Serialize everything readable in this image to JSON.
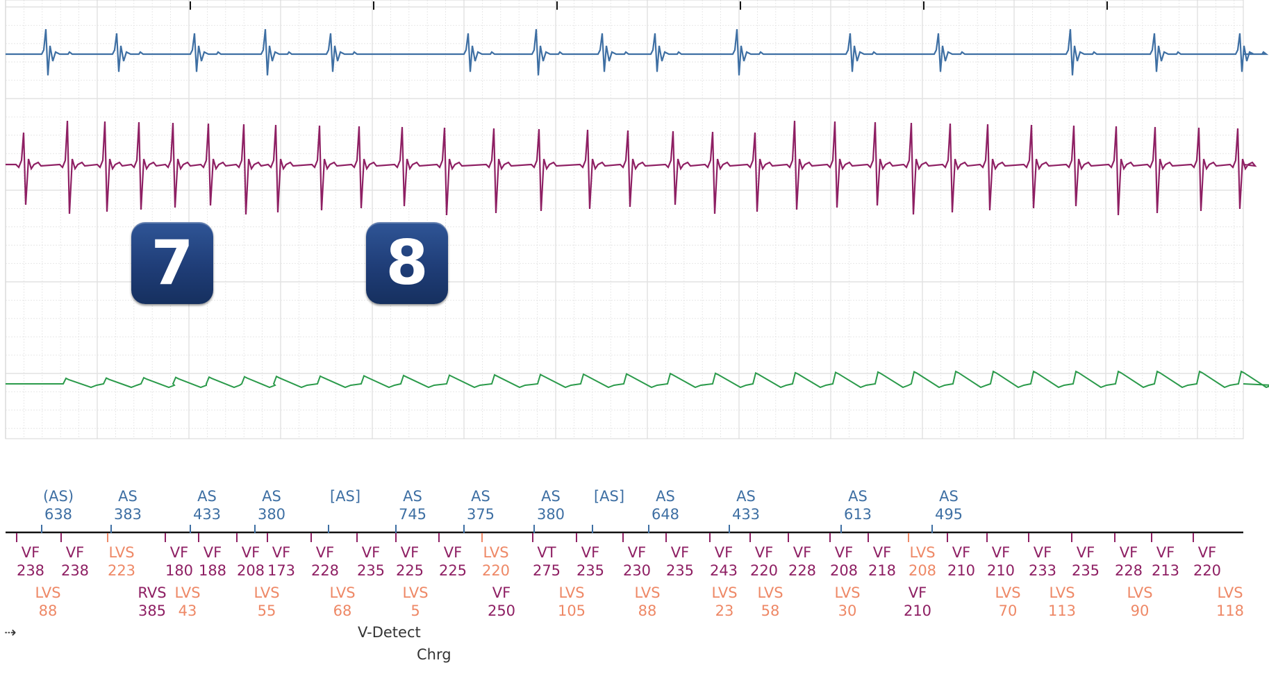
{
  "badges": [
    "7",
    "8"
  ],
  "colors": {
    "atrial": "#3e6fa3",
    "rv": "#8e1f63",
    "shock": "#2a9a4a",
    "lv": "#ee8866",
    "grid": "#e2e2e2"
  },
  "atrial_markers": [
    {
      "label": "(AS)",
      "value": "638"
    },
    {
      "label": "AS",
      "value": "383"
    },
    {
      "label": "AS",
      "value": "433"
    },
    {
      "label": "AS",
      "value": "380"
    },
    {
      "label": "[AS]",
      "value": ""
    },
    {
      "label": "AS",
      "value": "745"
    },
    {
      "label": "AS",
      "value": "375"
    },
    {
      "label": "AS",
      "value": "380"
    },
    {
      "label": "[AS]",
      "value": ""
    },
    {
      "label": "AS",
      "value": "648"
    },
    {
      "label": "AS",
      "value": "433"
    },
    {
      "label": "AS",
      "value": "613"
    },
    {
      "label": "AS",
      "value": "495"
    }
  ],
  "ventricular_markers": [
    {
      "label": "VF",
      "value": "238",
      "kind": "rv"
    },
    {
      "label": "VF",
      "value": "238",
      "kind": "rv"
    },
    {
      "label": "LVS",
      "value": "223",
      "kind": "lv"
    },
    {
      "label": "VF",
      "value": "180",
      "kind": "rv"
    },
    {
      "label": "VF",
      "value": "188",
      "kind": "rv"
    },
    {
      "label": "VF",
      "value": "208",
      "kind": "rv"
    },
    {
      "label": "VF",
      "value": "173",
      "kind": "rv"
    },
    {
      "label": "VF",
      "value": "228",
      "kind": "rv"
    },
    {
      "label": "VF",
      "value": "235",
      "kind": "rv"
    },
    {
      "label": "VF",
      "value": "225",
      "kind": "rv"
    },
    {
      "label": "VF",
      "value": "225",
      "kind": "rv"
    },
    {
      "label": "LVS",
      "value": "220",
      "kind": "lv"
    },
    {
      "label": "VT",
      "value": "275",
      "kind": "rv"
    },
    {
      "label": "VF",
      "value": "235",
      "kind": "rv"
    },
    {
      "label": "VF",
      "value": "230",
      "kind": "rv"
    },
    {
      "label": "VF",
      "value": "235",
      "kind": "rv"
    },
    {
      "label": "VF",
      "value": "243",
      "kind": "rv"
    },
    {
      "label": "VF",
      "value": "220",
      "kind": "rv"
    },
    {
      "label": "VF",
      "value": "228",
      "kind": "rv"
    },
    {
      "label": "VF",
      "value": "208",
      "kind": "rv"
    },
    {
      "label": "VF",
      "value": "218",
      "kind": "rv"
    },
    {
      "label": "LVS",
      "value": "208",
      "kind": "lv"
    },
    {
      "label": "VF",
      "value": "210",
      "kind": "rv"
    },
    {
      "label": "VF",
      "value": "210",
      "kind": "rv"
    },
    {
      "label": "VF",
      "value": "233",
      "kind": "rv"
    },
    {
      "label": "VF",
      "value": "235",
      "kind": "rv"
    },
    {
      "label": "VF",
      "value": "228",
      "kind": "rv"
    },
    {
      "label": "VF",
      "value": "213",
      "kind": "rv"
    },
    {
      "label": "VF",
      "value": "220",
      "kind": "rv"
    }
  ],
  "lower_markers": [
    {
      "label": "LVS",
      "value": "88",
      "kind": "lv"
    },
    {
      "label": "RVS",
      "value": "385",
      "kind": "rv"
    },
    {
      "label": "LVS",
      "value": "43",
      "kind": "lv"
    },
    {
      "label": "LVS",
      "value": "55",
      "kind": "lv"
    },
    {
      "label": "LVS",
      "value": "68",
      "kind": "lv"
    },
    {
      "label": "LVS",
      "value": "5",
      "kind": "lv"
    },
    {
      "label": "VF",
      "value": "250",
      "kind": "rv"
    },
    {
      "label": "LVS",
      "value": "105",
      "kind": "lv"
    },
    {
      "label": "LVS",
      "value": "88",
      "kind": "lv"
    },
    {
      "label": "LVS",
      "value": "23",
      "kind": "lv"
    },
    {
      "label": "LVS",
      "value": "58",
      "kind": "lv"
    },
    {
      "label": "LVS",
      "value": "30",
      "kind": "lv"
    },
    {
      "label": "VF",
      "value": "210",
      "kind": "rv"
    },
    {
      "label": "LVS",
      "value": "70",
      "kind": "lv"
    },
    {
      "label": "LVS",
      "value": "113",
      "kind": "lv"
    },
    {
      "label": "LVS",
      "value": "90",
      "kind": "lv"
    },
    {
      "label": "LVS",
      "value": "118",
      "kind": "lv"
    }
  ],
  "events": [
    "V-Detect",
    "Chrg"
  ]
}
